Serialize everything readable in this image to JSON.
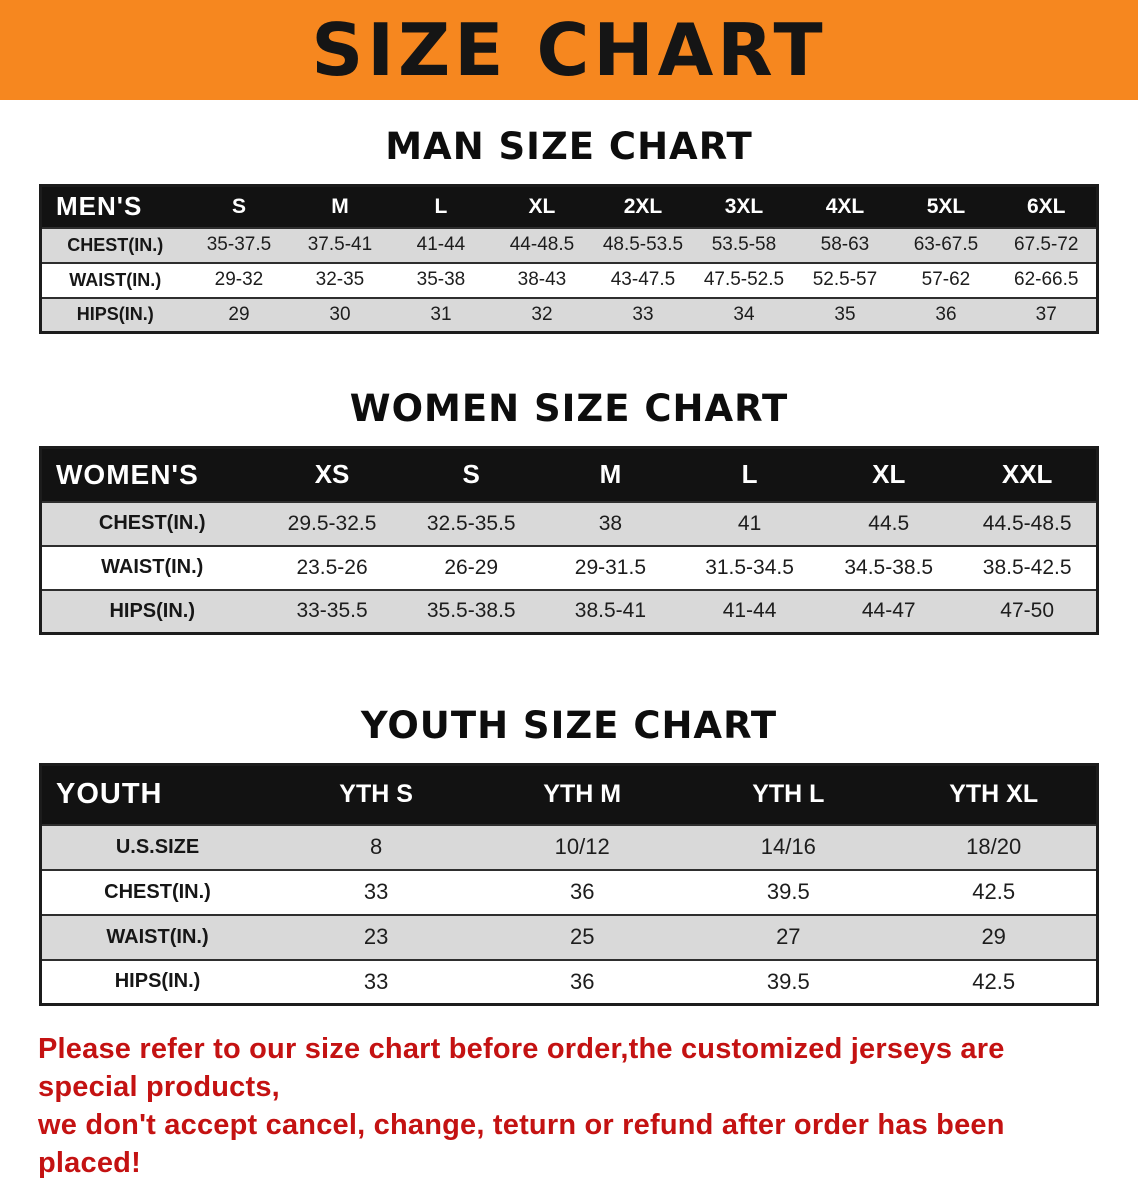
{
  "banner": {
    "title": "SIZE CHART"
  },
  "sections": [
    {
      "id": "men",
      "heading": "MAN SIZE CHART",
      "corner_label": "MEN'S",
      "columns": [
        "S",
        "M",
        "L",
        "XL",
        "2XL",
        "3XL",
        "4XL",
        "5XL",
        "6XL"
      ],
      "rows": [
        {
          "label": "CHEST(IN.)",
          "values": [
            "35-37.5",
            "37.5-41",
            "41-44",
            "44-48.5",
            "48.5-53.5",
            "53.5-58",
            "58-63",
            "63-67.5",
            "67.5-72"
          ]
        },
        {
          "label": "WAIST(IN.)",
          "values": [
            "29-32",
            "32-35",
            "35-38",
            "38-43",
            "43-47.5",
            "47.5-52.5",
            "52.5-57",
            "57-62",
            "62-66.5"
          ]
        },
        {
          "label": "HIPS(IN.)",
          "values": [
            "29",
            "30",
            "31",
            "32",
            "33",
            "34",
            "35",
            "36",
            "37"
          ]
        }
      ]
    },
    {
      "id": "women",
      "heading": "WOMEN SIZE CHART",
      "corner_label": "WOMEN'S",
      "columns": [
        "XS",
        "S",
        "M",
        "L",
        "XL",
        "XXL"
      ],
      "rows": [
        {
          "label": "CHEST(IN.)",
          "values": [
            "29.5-32.5",
            "32.5-35.5",
            "38",
            "41",
            "44.5",
            "44.5-48.5"
          ]
        },
        {
          "label": "WAIST(IN.)",
          "values": [
            "23.5-26",
            "26-29",
            "29-31.5",
            "31.5-34.5",
            "34.5-38.5",
            "38.5-42.5"
          ]
        },
        {
          "label": "HIPS(IN.)",
          "values": [
            "33-35.5",
            "35.5-38.5",
            "38.5-41",
            "41-44",
            "44-47",
            "47-50"
          ]
        }
      ]
    },
    {
      "id": "youth",
      "heading": "YOUTH SIZE CHART",
      "corner_label": "YOUTH",
      "columns": [
        "YTH S",
        "YTH M",
        "YTH L",
        "YTH XL"
      ],
      "rows": [
        {
          "label": "U.S.SIZE",
          "values": [
            "8",
            "10/12",
            "14/16",
            "18/20"
          ]
        },
        {
          "label": "CHEST(IN.)",
          "values": [
            "33",
            "36",
            "39.5",
            "42.5"
          ]
        },
        {
          "label": "WAIST(IN.)",
          "values": [
            "23",
            "25",
            "27",
            "29"
          ]
        },
        {
          "label": "HIPS(IN.)",
          "values": [
            "33",
            "36",
            "39.5",
            "42.5"
          ]
        }
      ]
    }
  ],
  "footer": {
    "line1": "Please refer to our size chart before order,the customized jerseys are special products,",
    "line2": "we don't accept cancel, change, teturn or refund after order has been placed!"
  },
  "colors": {
    "banner_bg": "#f6871f",
    "table_header_bg": "#121212",
    "row_alt_bg": "#d9d9d9",
    "footer_text": "#c41212"
  }
}
